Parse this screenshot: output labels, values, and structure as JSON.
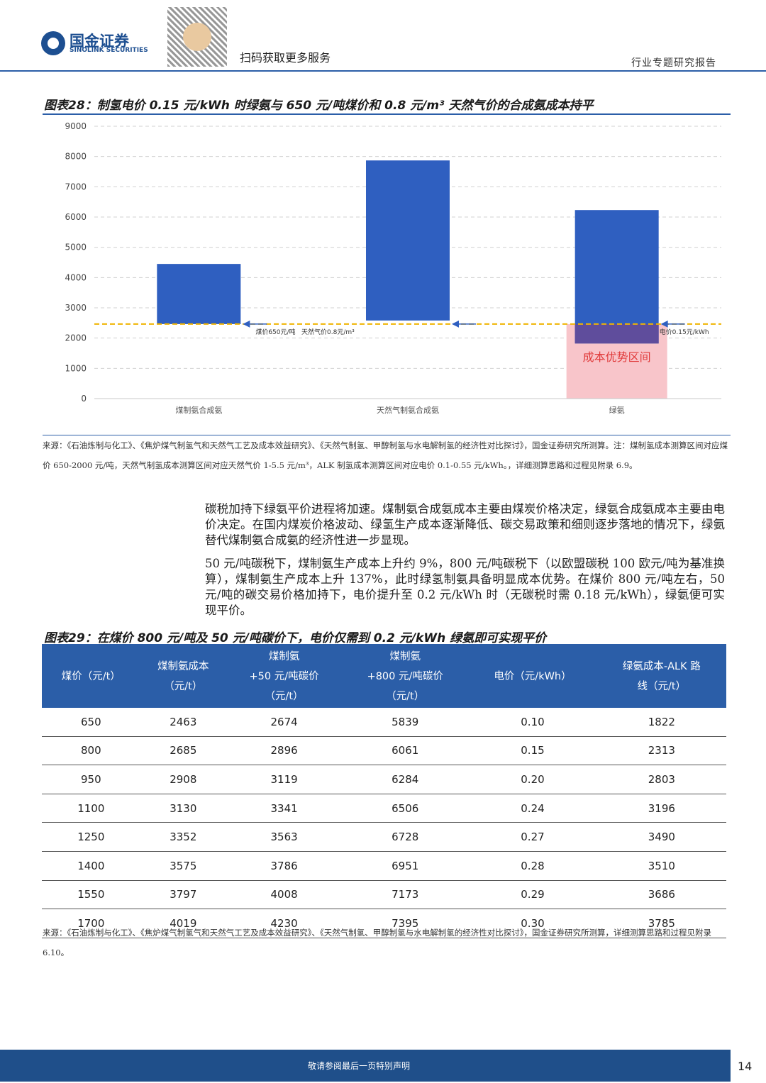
{
  "header": {
    "logo_cn": "国金证券",
    "logo_en": "SINOLINK SECURITIES",
    "qr_text": "扫码获取更多服务",
    "report_type": "行业专题研究报告"
  },
  "figure28": {
    "title": "图表28：制氢电价 0.15 元/kWh 时绿氨与 650 元/吨煤价和 0.8 元/m³ 天然气价的合成氨成本持平",
    "source": "来源：《石油炼制与化工》、《焦炉煤气制氢气和天然气工艺及成本效益研究》、《天然气制氢、甲醇制氢与水电解制氢的经济性对比探讨》，国金证券研究所测算。注：煤制氢成本测算区间对应煤价 650-2000 元/吨，天然气制氢成本测算区间对应天然气价 1-5.5 元/m³，ALK 制氢成本测算区间对应电价 0.1-0.55 元/kWh。，详细测算思路和过程见附录 6.9。"
  },
  "chart_data": {
    "type": "floating_bar",
    "categories": [
      "煤制氨合成氨",
      "天然气制氨合成氨",
      "绿氨"
    ],
    "low": [
      2463,
      2580,
      1822
    ],
    "high": [
      4450,
      7870,
      6230
    ],
    "color": "#2f5fc0",
    "ylim": [
      0,
      9000
    ],
    "yticks": [
      0,
      1000,
      2000,
      3000,
      4000,
      5000,
      6000,
      7000,
      8000,
      9000
    ],
    "grid": true,
    "reference_line": 2463,
    "reference_color": "#f0b400",
    "annotations": [
      "煤价650元/吨",
      "天然气价0.8元/m³",
      "电价0.15元/kWh"
    ],
    "region_label": "成本优势区间"
  },
  "paragraphs": [
    "碳税加持下绿氨平价进程将加速。煤制氨合成氨成本主要由煤炭价格决定，绿氨合成氨成本主要由电价决定。在国内煤炭价格波动、绿氢生产成本逐渐降低、碳交易政策和细则逐步落地的情况下，绿氨替代煤制氨合成氨的经济性进一步显现。",
    "50 元/吨碳税下，煤制氨生产成本上升约 9%，800 元/吨碳税下（以欧盟碳税 100 欧元/吨为基准换算），煤制氨生产成本上升 137%，此时绿氢制氨具备明显成本优势。在煤价 800 元/吨左右，50 元/吨的碳交易价格加持下，电价提升至 0.2 元/kWh 时（无碳税时需 0.18 元/kWh），绿氨便可实现平价。"
  ],
  "figure29": {
    "title": "图表29：在煤价 800 元/吨及 50 元/吨碳价下，电价仅需到 0.2 元/kWh 绿氨即可实现平价",
    "table": {
      "header": [
        "煤价（元/t）",
        "煤制氨成本\n（元/t）",
        "煤制氨\n+50 元/吨碳价\n（元/t）",
        "煤制氨\n+800 元/吨碳价\n（元/t）",
        "电价（元/kWh）",
        "绿氨成本-ALK 路\n线（元/t）"
      ],
      "rows": [
        [
          "650",
          "2463",
          "2674",
          "5839",
          "0.10",
          "1822"
        ],
        [
          "800",
          "2685",
          "2896",
          "6061",
          "0.15",
          "2313"
        ],
        [
          "950",
          "2908",
          "3119",
          "6284",
          "0.20",
          "2803"
        ],
        [
          "1100",
          "3130",
          "3341",
          "6506",
          "0.24",
          "3196"
        ],
        [
          "1250",
          "3352",
          "3563",
          "6728",
          "0.27",
          "3490"
        ],
        [
          "1400",
          "3575",
          "3786",
          "6951",
          "0.28",
          "3510"
        ],
        [
          "1550",
          "3797",
          "4008",
          "7173",
          "0.29",
          "3686"
        ],
        [
          "1700",
          "4019",
          "4230",
          "7395",
          "0.30",
          "3785"
        ]
      ]
    },
    "source": "来源：《石油炼制与化工》、《焦炉煤气制氢气和天然气工艺及成本效益研究》、《天然气制氢、甲醇制氢与水电解制氢的经济性对比探讨》，国金证券研究所测算，详细测算思路和过程见附录 6.10。"
  },
  "footer": {
    "disclaimer": "敬请参阅最后一页特别声明",
    "page": "14"
  }
}
